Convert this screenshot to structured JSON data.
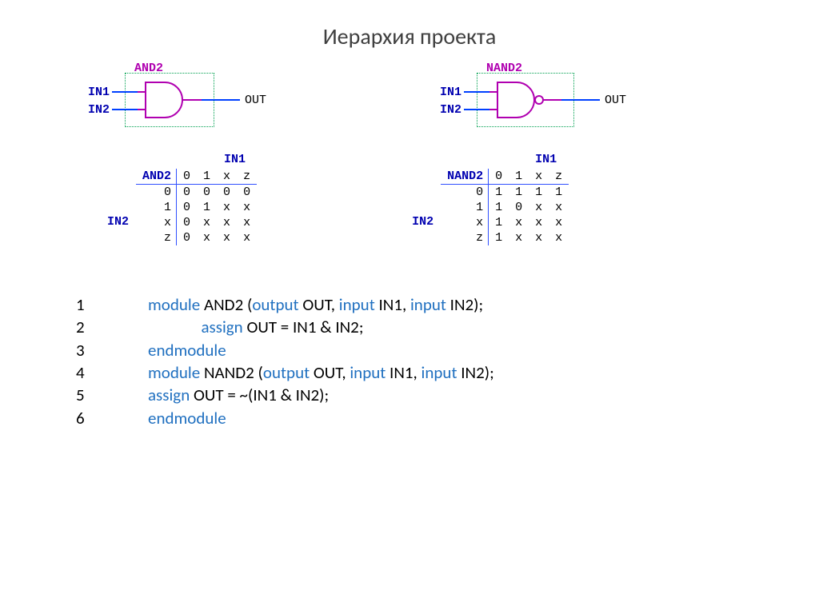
{
  "title": "Иерархия проекта",
  "colors": {
    "module_border": "#00a050",
    "gate_title": "#b000b0",
    "signal_blue": "#0000b0",
    "wire_gate": "#b000b0",
    "wire_port": "#0040ff",
    "table_border": "#3050ff",
    "keyword": "#2070c0",
    "text": "#000000",
    "background": "#ffffff"
  },
  "gates": {
    "and2": {
      "title": "AND2",
      "in1": "IN1",
      "in2": "IN2",
      "out": "OUT",
      "has_bubble": false
    },
    "nand2": {
      "title": "NAND2",
      "in1": "IN1",
      "in2": "IN2",
      "out": "OUT",
      "has_bubble": true
    }
  },
  "tables": {
    "and2": {
      "name": "AND2",
      "col_axis": "IN1",
      "row_axis": "IN2",
      "cols": [
        "0",
        "1",
        "x",
        "z"
      ],
      "rows": [
        "0",
        "1",
        "x",
        "z"
      ],
      "data": [
        [
          "0",
          "0",
          "0",
          "0"
        ],
        [
          "0",
          "1",
          "x",
          "x"
        ],
        [
          "0",
          "x",
          "x",
          "x"
        ],
        [
          "0",
          "x",
          "x",
          "x"
        ]
      ]
    },
    "nand2": {
      "name": "NAND2",
      "col_axis": "IN1",
      "row_axis": "IN2",
      "cols": [
        "0",
        "1",
        "x",
        "z"
      ],
      "rows": [
        "0",
        "1",
        "x",
        "z"
      ],
      "data": [
        [
          "1",
          "1",
          "1",
          "1"
        ],
        [
          "1",
          "0",
          "x",
          "x"
        ],
        [
          "1",
          "x",
          "x",
          "x"
        ],
        [
          "1",
          "x",
          "x",
          "x"
        ]
      ]
    }
  },
  "code": {
    "lines": [
      {
        "n": "1",
        "tokens": [
          {
            "t": "module ",
            "c": "kw"
          },
          {
            "t": "AND2 (",
            "c": "tk"
          },
          {
            "t": "output ",
            "c": "kw"
          },
          {
            "t": "OUT, ",
            "c": "tk"
          },
          {
            "t": "input ",
            "c": "kw"
          },
          {
            "t": "IN1, ",
            "c": "tk"
          },
          {
            "t": "input ",
            "c": "kw"
          },
          {
            "t": "IN2);",
            "c": "tk"
          }
        ]
      },
      {
        "n": "2",
        "tokens": [
          {
            "t": "              ",
            "c": "tk"
          },
          {
            "t": "assign ",
            "c": "kw"
          },
          {
            "t": "OUT = IN1 & IN2;",
            "c": "tk"
          }
        ]
      },
      {
        "n": "3",
        "tokens": [
          {
            "t": "endmodule",
            "c": "kw"
          }
        ]
      },
      {
        "n": "4",
        "tokens": [
          {
            "t": "module ",
            "c": "kw"
          },
          {
            "t": "NAND2 (",
            "c": "tk"
          },
          {
            "t": "output ",
            "c": "kw"
          },
          {
            "t": "OUT, ",
            "c": "tk"
          },
          {
            "t": "input ",
            "c": "kw"
          },
          {
            "t": "IN1, ",
            "c": "tk"
          },
          {
            "t": "input ",
            "c": "kw"
          },
          {
            "t": "IN2);",
            "c": "tk"
          }
        ]
      },
      {
        "n": "5",
        "tokens": [
          {
            "t": "assign ",
            "c": "kw"
          },
          {
            "t": "OUT = ~(IN1 & IN2);",
            "c": "tk"
          }
        ]
      },
      {
        "n": "6",
        "tokens": [
          {
            "t": "endmodule",
            "c": "kw"
          }
        ]
      }
    ]
  }
}
